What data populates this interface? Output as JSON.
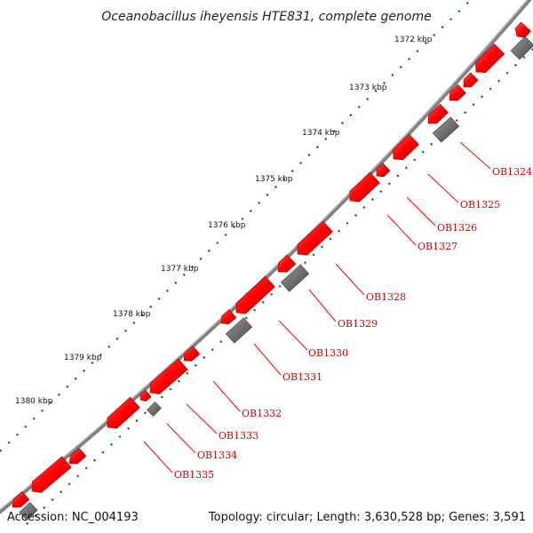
{
  "title": "Oceanobacillus iheyensis HTE831, complete genome",
  "footer": {
    "accession": "Accession: NC_004193",
    "summary": "Topology: circular; Length: 3,630,528 bp; Genes: 3,591"
  },
  "colors": {
    "backbone": "#808080",
    "gene_forward": "#ff0000",
    "gene_other": "#707070",
    "tick_dots": "#006600",
    "label": "#cc0000"
  },
  "kbp_ticks": [
    "1372 kbp",
    "1373 kbp",
    "1374 kbp",
    "1375 kbp",
    "1376 kbp",
    "1377 kbp",
    "1378 kbp",
    "1379 kbp",
    "1380 kbp"
  ],
  "gene_labels": [
    "OB1324",
    "OB1325",
    "OB1326",
    "OB1327",
    "OB1328",
    "OB1329",
    "OB1330",
    "OB1331",
    "OB1332",
    "OB1333",
    "OB1334",
    "OB1335"
  ]
}
